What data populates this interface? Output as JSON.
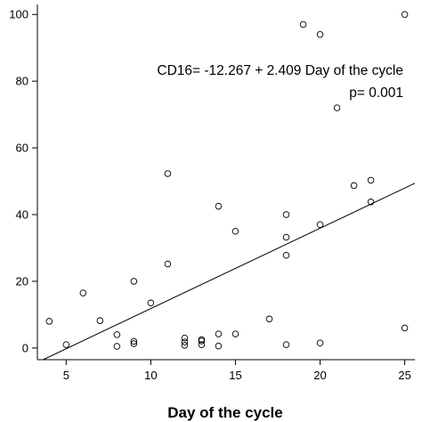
{
  "chart_data": {
    "type": "scatter",
    "title": "",
    "xlabel": "Day of the cycle",
    "ylabel": "",
    "xlim": [
      3.3,
      25.6
    ],
    "ylim": [
      -3.5,
      103
    ],
    "x_ticks": [
      5,
      10,
      15,
      20,
      25
    ],
    "y_ticks": [
      0,
      20,
      40,
      60,
      80,
      100
    ],
    "grid": false,
    "series": [
      {
        "points": [
          [
            4,
            8
          ],
          [
            5,
            1
          ],
          [
            6,
            16.5
          ],
          [
            7,
            8.2
          ],
          [
            8,
            4
          ],
          [
            8,
            0.5
          ],
          [
            9,
            20
          ],
          [
            9,
            2
          ],
          [
            9,
            1.3
          ],
          [
            10,
            13.5
          ],
          [
            11,
            52.3
          ],
          [
            11,
            25.2
          ],
          [
            12,
            3
          ],
          [
            12,
            1.8
          ],
          [
            12,
            0.8
          ],
          [
            13,
            2.5
          ],
          [
            13,
            2.1
          ],
          [
            13,
            1
          ],
          [
            14,
            42.5
          ],
          [
            14,
            4.2
          ],
          [
            14,
            0.6
          ],
          [
            15,
            35
          ],
          [
            15,
            4.2
          ],
          [
            17,
            8.7
          ],
          [
            18,
            40
          ],
          [
            18,
            33.2
          ],
          [
            18,
            27.8
          ],
          [
            18,
            1
          ],
          [
            19,
            97
          ],
          [
            20,
            94
          ],
          [
            20,
            37
          ],
          [
            20,
            1.5
          ],
          [
            21,
            72
          ],
          [
            22,
            48.7
          ],
          [
            23,
            50.3
          ],
          [
            23,
            43.8
          ],
          [
            25,
            100
          ],
          [
            25,
            6
          ]
        ]
      }
    ],
    "fit_line": {
      "intercept": -12.267,
      "slope": 2.409
    },
    "annotations": [
      "CD16= -12.267 + 2.409 Day of the cycle",
      "p= 0.001"
    ]
  }
}
